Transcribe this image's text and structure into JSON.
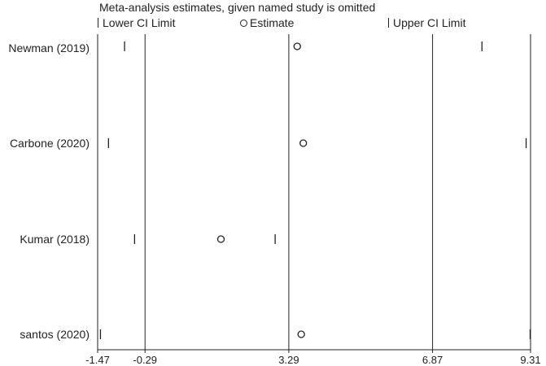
{
  "chart_data": {
    "type": "forest",
    "title": "Meta-analysis estimates, given named study is omitted",
    "legend": [
      "Lower CI Limit",
      "Estimate",
      "Upper CI Limit"
    ],
    "x_ticks": [
      -1.47,
      -0.29,
      3.29,
      6.87,
      9.31
    ],
    "reference_lines": [
      -0.29,
      3.29,
      6.87
    ],
    "xlim": [
      -1.47,
      9.31
    ],
    "studies": [
      {
        "name": "Newman (2019)",
        "lower": -0.8,
        "estimate": 3.5,
        "upper": 8.1
      },
      {
        "name": "Carbone (2020)",
        "lower": -1.2,
        "estimate": 3.65,
        "upper": 9.2
      },
      {
        "name": "Kumar (2018)",
        "lower": -0.55,
        "estimate": 1.6,
        "upper": 2.95
      },
      {
        "name": "santos (2020)",
        "lower": -1.4,
        "estimate": 3.6,
        "upper": 9.3
      }
    ]
  }
}
